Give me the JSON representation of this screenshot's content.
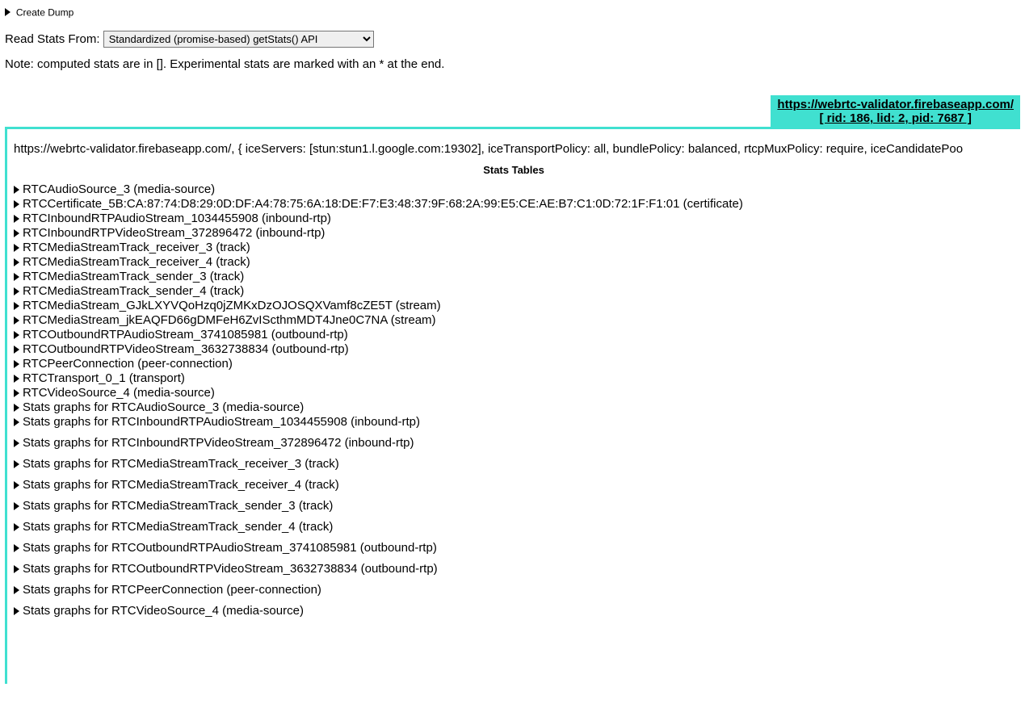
{
  "top": {
    "create_dump_label": "Create Dump",
    "read_stats_label": "Read Stats From: ",
    "select_value": "Standardized (promise-based) getStats() API",
    "note_text": "Note: computed stats are in []. Experimental stats are marked with an * at the end."
  },
  "tab": {
    "url": "https://webrtc-validator.firebaseapp.com/",
    "ids": "[ rid: 186, lid: 2, pid: 7687 ]"
  },
  "conn_info": "https://webrtc-validator.firebaseapp.com/, { iceServers: [stun:stun1.l.google.com:19302], iceTransportPolicy: all, bundlePolicy: balanced, rtcpMuxPolicy: require, iceCandidatePoo",
  "stats_tables_header": "Stats Tables",
  "stat_items": [
    "RTCAudioSource_3 (media-source)",
    "RTCCertificate_5B:CA:87:74:D8:29:0D:DF:A4:78:75:6A:18:DE:F7:E3:48:37:9F:68:2A:99:E5:CE:AE:B7:C1:0D:72:1F:F1:01 (certificate)",
    "RTCInboundRTPAudioStream_1034455908 (inbound-rtp)",
    "RTCInboundRTPVideoStream_372896472 (inbound-rtp)",
    "RTCMediaStreamTrack_receiver_3 (track)",
    "RTCMediaStreamTrack_receiver_4 (track)",
    "RTCMediaStreamTrack_sender_3 (track)",
    "RTCMediaStreamTrack_sender_4 (track)",
    "RTCMediaStream_GJkLXYVQoHzq0jZMKxDzOJOSQXVamf8cZE5T (stream)",
    "RTCMediaStream_jkEAQFD66gDMFeH6ZvIScthmMDT4Jne0C7NA (stream)",
    "RTCOutboundRTPAudioStream_3741085981 (outbound-rtp)",
    "RTCOutboundRTPVideoStream_3632738834 (outbound-rtp)",
    "RTCPeerConnection (peer-connection)",
    "RTCTransport_0_1 (transport)",
    "RTCVideoSource_4 (media-source)",
    "Stats graphs for RTCAudioSource_3 (media-source)"
  ],
  "graph_items": [
    "Stats graphs for RTCInboundRTPAudioStream_1034455908 (inbound-rtp)",
    "Stats graphs for RTCInboundRTPVideoStream_372896472 (inbound-rtp)",
    "Stats graphs for RTCMediaStreamTrack_receiver_3 (track)",
    "Stats graphs for RTCMediaStreamTrack_receiver_4 (track)",
    "Stats graphs for RTCMediaStreamTrack_sender_3 (track)",
    "Stats graphs for RTCMediaStreamTrack_sender_4 (track)",
    "Stats graphs for RTCOutboundRTPAudioStream_3741085981 (outbound-rtp)",
    "Stats graphs for RTCOutboundRTPVideoStream_3632738834 (outbound-rtp)",
    "Stats graphs for RTCPeerConnection (peer-connection)",
    "Stats graphs for RTCVideoSource_4 (media-source)"
  ],
  "colors": {
    "accent": "#40e0d0"
  }
}
